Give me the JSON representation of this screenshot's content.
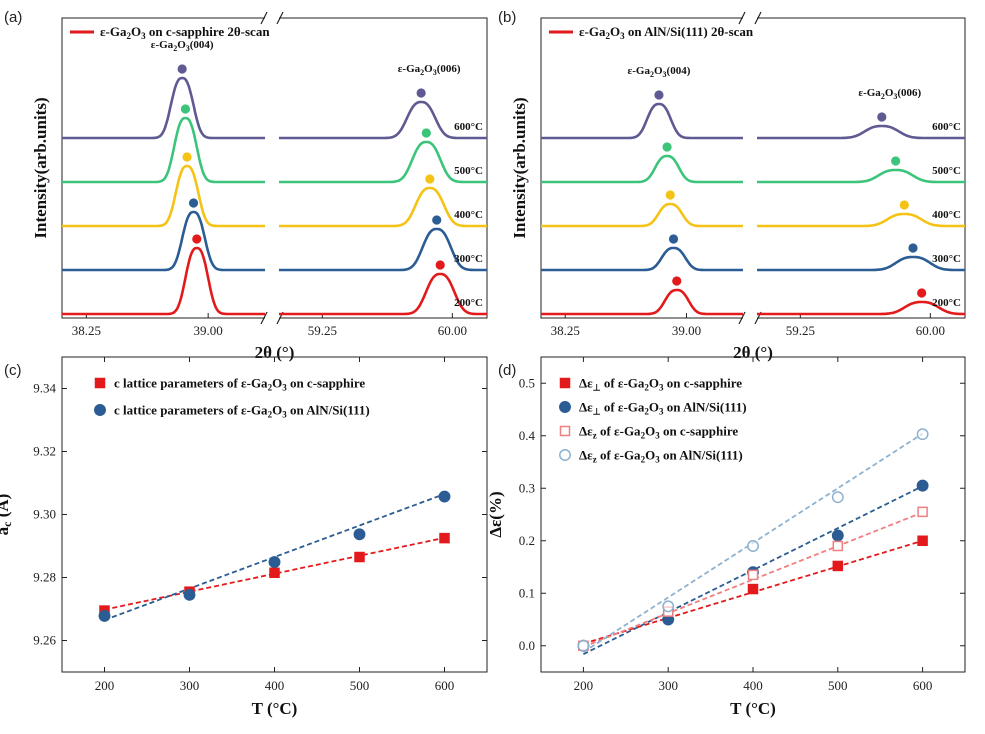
{
  "figure": {
    "panels": [
      {
        "id": "a",
        "label": "(a)"
      },
      {
        "id": "b",
        "label": "(b)"
      },
      {
        "id": "c",
        "label": "(c)"
      },
      {
        "id": "d",
        "label": "(d)"
      }
    ]
  },
  "colors": {
    "red": "#e31a1c",
    "blue": "#2b5c93",
    "yellow": "#f5c316",
    "green": "#3cc47a",
    "purple": "#5f5a92",
    "light_red": "#f07f7f",
    "light_blue": "#8eb2d0"
  },
  "chart_data": [
    {
      "panel": "a",
      "type": "line",
      "xlabel": "2θ (°)",
      "ylabel": "Intensity(arb.units)",
      "legend": [
        "ε-Ga2O3 on c-sapphire 2θ-scan"
      ],
      "legend_position": "top-left",
      "x_segments": [
        {
          "range": [
            38.1,
            39.35
          ],
          "ticks": [
            "38.25",
            "39.00"
          ]
        },
        {
          "range": [
            59.0,
            60.2
          ],
          "ticks": [
            "59.25",
            "60.00"
          ]
        }
      ],
      "peak_labels": [
        "ε-Ga2O3(004)",
        "ε-Ga2O3(006)"
      ],
      "series": [
        {
          "name": "200°C",
          "color": "#e31a1c",
          "peaks": [
            38.93,
            59.93
          ]
        },
        {
          "name": "300°C",
          "color": "#2b5c93",
          "peaks": [
            38.91,
            59.91
          ]
        },
        {
          "name": "400°C",
          "color": "#f5c316",
          "peaks": [
            38.87,
            59.87
          ]
        },
        {
          "name": "500°C",
          "color": "#3cc47a",
          "peaks": [
            38.86,
            59.85
          ]
        },
        {
          "name": "600°C",
          "color": "#5f5a92",
          "peaks": [
            38.84,
            59.82
          ]
        }
      ]
    },
    {
      "panel": "b",
      "type": "line",
      "xlabel": "2θ (°)",
      "ylabel": "Intensity(arb.units)",
      "legend": [
        "ε-Ga2O3 on AlN/Si(111) 2θ-scan"
      ],
      "legend_position": "top-left",
      "x_segments": [
        {
          "range": [
            38.1,
            39.35
          ],
          "ticks": [
            "38.25",
            "39.00"
          ]
        },
        {
          "range": [
            59.0,
            60.2
          ],
          "ticks": [
            "59.25",
            "60.00"
          ]
        }
      ],
      "peak_labels": [
        "ε-Ga2O3(004)",
        "ε-Ga2O3(006)"
      ],
      "series": [
        {
          "name": "200°C",
          "color": "#e31a1c",
          "peaks": [
            38.94,
            59.95
          ]
        },
        {
          "name": "300°C",
          "color": "#2b5c93",
          "peaks": [
            38.92,
            59.9
          ]
        },
        {
          "name": "400°C",
          "color": "#f5c316",
          "peaks": [
            38.9,
            59.85
          ]
        },
        {
          "name": "500°C",
          "color": "#3cc47a",
          "peaks": [
            38.88,
            59.8
          ]
        },
        {
          "name": "600°C",
          "color": "#5f5a92",
          "peaks": [
            38.83,
            59.72
          ]
        }
      ]
    },
    {
      "panel": "c",
      "type": "scatter",
      "xlabel": "T (°C)",
      "ylabel": "ac (Å)",
      "xlim": [
        150,
        650
      ],
      "ylim": [
        9.25,
        9.35
      ],
      "xticks": [
        200,
        300,
        400,
        500,
        600
      ],
      "yticks": [
        9.26,
        9.28,
        9.3,
        9.32,
        9.34
      ],
      "legend_position": "top-left",
      "x": [
        200,
        300,
        400,
        500,
        600
      ],
      "series": [
        {
          "name": "c lattice parameters of ε-Ga2O3 on c-sapphire",
          "color": "#e31a1c",
          "marker": "square",
          "values": [
            9.2695,
            9.2755,
            9.2815,
            9.2865,
            9.2925
          ],
          "fit": [
            9.2698,
            9.2755,
            9.2812,
            9.2869,
            9.2926
          ]
        },
        {
          "name": "c lattice parameters of ε-Ga2O3 on AlN/Si(111)",
          "color": "#2b5c93",
          "marker": "circle",
          "values": [
            9.2678,
            9.2745,
            9.2849,
            9.2937,
            9.3057
          ],
          "fit": [
            9.2665,
            9.2765,
            9.2865,
            9.2965,
            9.3065
          ]
        }
      ]
    },
    {
      "panel": "d",
      "type": "scatter",
      "xlabel": "T (°C)",
      "ylabel": "Δε(%)",
      "xlim": [
        150,
        650
      ],
      "ylim": [
        -0.05,
        0.55
      ],
      "xticks": [
        200,
        300,
        400,
        500,
        600
      ],
      "yticks": [
        "0.0",
        "0.1",
        "0.2",
        "0.3",
        "0.4",
        "0.5"
      ],
      "legend_position": "top-left",
      "x": [
        200,
        300,
        400,
        500,
        600
      ],
      "series": [
        {
          "name": "Δε⊥ of ε-Ga2O3 on c-sapphire",
          "color": "#e31a1c",
          "marker": "square",
          "filled": true,
          "values": [
            0.0,
            0.055,
            0.108,
            0.152,
            0.2
          ],
          "fit": [
            0.004,
            0.053,
            0.102,
            0.151,
            0.2
          ]
        },
        {
          "name": "Δε⊥ of ε-Ga2O3 on AlN/Si(111)",
          "color": "#2b5c93",
          "marker": "circle",
          "filled": true,
          "values": [
            0.0,
            0.05,
            0.14,
            0.21,
            0.305
          ],
          "fit": [
            -0.016,
            0.064,
            0.144,
            0.224,
            0.304
          ]
        },
        {
          "name": "Δεz of ε-Ga2O3 on c-sapphire",
          "color": "#f07f7f",
          "marker": "square",
          "filled": false,
          "values": [
            0.0,
            0.065,
            0.135,
            0.19,
            0.255
          ],
          "fit": [
            -0.002,
            0.062,
            0.126,
            0.19,
            0.254
          ]
        },
        {
          "name": "Δεz of ε-Ga2O3 on AlN/Si(111)",
          "color": "#8eb2d0",
          "marker": "circle",
          "filled": false,
          "values": [
            0.0,
            0.075,
            0.19,
            0.283,
            0.403
          ],
          "fit": [
            -0.012,
            0.092,
            0.196,
            0.3,
            0.404
          ]
        }
      ]
    }
  ]
}
